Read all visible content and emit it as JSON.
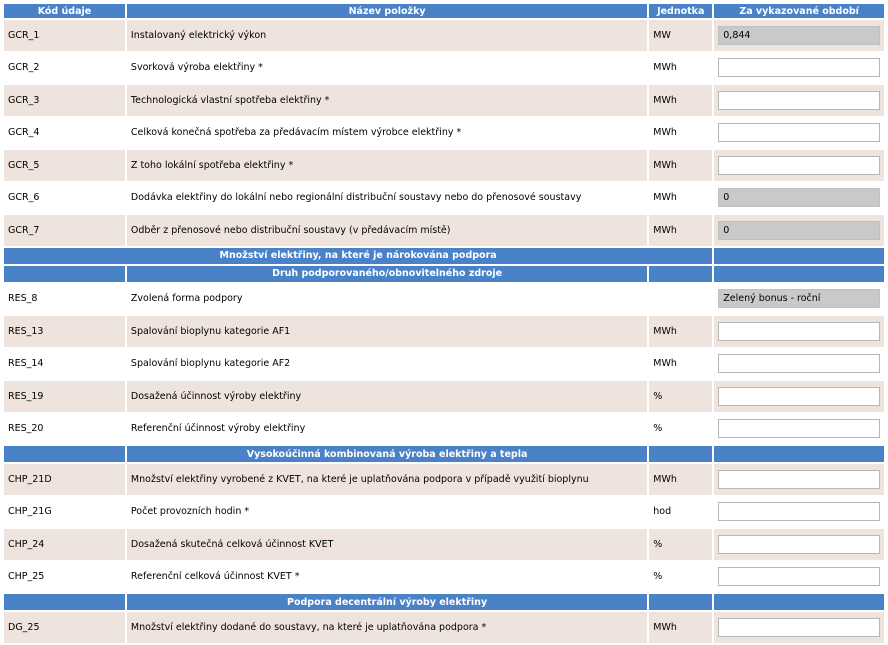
{
  "headers": {
    "code": "Kód údaje",
    "name": "Název položky",
    "unit": "Jednotka",
    "period": "Za vykazované období"
  },
  "rows": [
    {
      "type": "data",
      "code": "GCR_1",
      "name": "Instalovaný elektrický výkon",
      "unit": "MW",
      "value": "0,844",
      "readonly": true
    },
    {
      "type": "data",
      "code": "GCR_2",
      "name": "Svorková výroba elektřiny *",
      "unit": "MWh",
      "value": "",
      "readonly": false
    },
    {
      "type": "data",
      "code": "GCR_3",
      "name": "Technologická vlastní spotřeba elektřiny *",
      "unit": "MWh",
      "value": "",
      "readonly": false
    },
    {
      "type": "data",
      "code": "GCR_4",
      "name": "Celková konečná spotřeba za předávacím místem výrobce elektřiny *",
      "unit": "MWh",
      "value": "",
      "readonly": false
    },
    {
      "type": "data",
      "code": "GCR_5",
      "name": "Z toho lokální spotřeba elektřiny *",
      "unit": "MWh",
      "value": "",
      "readonly": false
    },
    {
      "type": "data",
      "code": "GCR_6",
      "name": "Dodávka elektřiny do lokální nebo regionální distribuční soustavy nebo do přenosové soustavy",
      "unit": "MWh",
      "value": "0",
      "readonly": true
    },
    {
      "type": "data",
      "code": "GCR_7",
      "name": "Odběr z přenosové nebo distribuční soustavy (v předávacím místě)",
      "unit": "MWh",
      "value": "0",
      "readonly": true
    },
    {
      "type": "section",
      "title": "Množství elektřiny, na které je nárokována podpora",
      "full": true
    },
    {
      "type": "section",
      "title": "Druh podporovaného/obnovitelného zdroje",
      "full": false
    },
    {
      "type": "data",
      "code": "RES_8",
      "name": "Zvolená forma podpory",
      "unit": "",
      "value": "Zelený bonus - roční",
      "readonly": true
    },
    {
      "type": "data",
      "code": "RES_13",
      "name": "Spalování bioplynu kategorie AF1",
      "unit": "MWh",
      "value": "",
      "readonly": false
    },
    {
      "type": "data",
      "code": "RES_14",
      "name": "Spalování bioplynu kategorie AF2",
      "unit": "MWh",
      "value": "",
      "readonly": false
    },
    {
      "type": "data",
      "code": "RES_19",
      "name": "Dosažená účinnost výroby elektřiny",
      "unit": "%",
      "value": "",
      "readonly": false
    },
    {
      "type": "data",
      "code": "RES_20",
      "name": "Referenční účinnost výroby elektřiny",
      "unit": "%",
      "value": "",
      "readonly": false
    },
    {
      "type": "section",
      "title": "Vysokoúčinná kombinovaná výroba elektřiny a tepla",
      "full": false
    },
    {
      "type": "data",
      "code": "CHP_21D",
      "name": "Množství elektřiny vyrobené z KVET, na které je uplatňována podpora v případě využití bioplynu",
      "unit": "MWh",
      "value": "",
      "readonly": false
    },
    {
      "type": "data",
      "code": "CHP_21G",
      "name": "Počet provozních hodin *",
      "unit": "hod",
      "value": "",
      "readonly": false
    },
    {
      "type": "data",
      "code": "CHP_24",
      "name": "Dosažená skutečná celková účinnost KVET",
      "unit": "%",
      "value": "",
      "readonly": false
    },
    {
      "type": "data",
      "code": "CHP_25",
      "name": "Referenční celková účinnost KVET *",
      "unit": "%",
      "value": "",
      "readonly": false
    },
    {
      "type": "section",
      "title": "Podpora decentrální výroby elektřiny",
      "full": false
    },
    {
      "type": "data",
      "code": "DG_25",
      "name": "Množství elektřiny dodané do soustavy, na které je uplatňována podpora *",
      "unit": "MWh",
      "value": "",
      "readonly": false
    }
  ]
}
